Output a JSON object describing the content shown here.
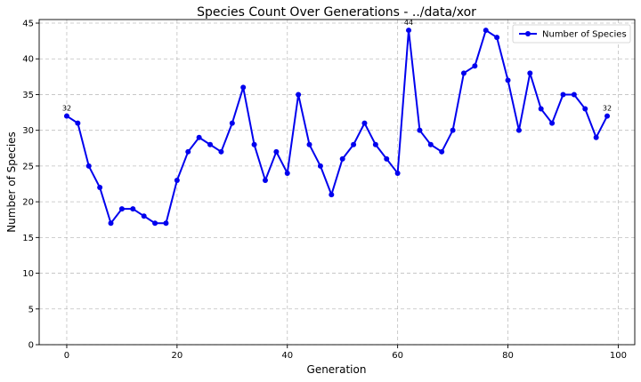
{
  "chart_data": {
    "type": "line",
    "title": "Species Count Over Generations - ../data/xor",
    "xlabel": "Generation",
    "ylabel": "Number of Species",
    "xlim": [
      -5,
      103
    ],
    "ylim": [
      0,
      45.5
    ],
    "xticks": [
      0,
      20,
      40,
      60,
      80,
      100
    ],
    "yticks": [
      0,
      5,
      10,
      15,
      20,
      25,
      30,
      35,
      40,
      45
    ],
    "grid": true,
    "legend_position": "top-right",
    "series": [
      {
        "name": "Number of Species",
        "color": "#0000ee",
        "marker": "circle",
        "x": [
          0,
          2,
          4,
          6,
          8,
          10,
          12,
          14,
          16,
          18,
          20,
          22,
          24,
          26,
          28,
          30,
          32,
          34,
          36,
          38,
          40,
          42,
          44,
          46,
          48,
          50,
          52,
          54,
          56,
          58,
          60,
          62,
          64,
          66,
          68,
          70,
          72,
          74,
          76,
          78,
          80,
          82,
          84,
          86,
          88,
          90,
          92,
          94,
          96,
          98
        ],
        "values": [
          32,
          31,
          25,
          22,
          17,
          19,
          19,
          18,
          17,
          17,
          23,
          27,
          29,
          28,
          27,
          31,
          36,
          28,
          23,
          27,
          24,
          35,
          28,
          25,
          21,
          26,
          28,
          31,
          28,
          26,
          24,
          44,
          30,
          28,
          27,
          30,
          38,
          39,
          44,
          43,
          37,
          30,
          38,
          33,
          31,
          35,
          35,
          33,
          29,
          32
        ]
      }
    ],
    "annotations": [
      {
        "x": 0,
        "y": 32,
        "text": "32"
      },
      {
        "x": 62,
        "y": 44,
        "text": "44"
      },
      {
        "x": 98,
        "y": 32,
        "text": "32"
      }
    ]
  }
}
